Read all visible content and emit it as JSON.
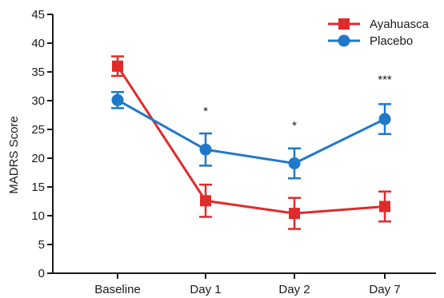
{
  "chart_data": {
    "type": "line",
    "title": "",
    "xlabel": "",
    "ylabel": "MADRS Score",
    "ylim": [
      0,
      45
    ],
    "yticks": [
      0,
      5,
      10,
      15,
      20,
      25,
      30,
      35,
      40,
      45
    ],
    "categories": [
      "Baseline",
      "Day 1",
      "Day 2",
      "Day 7"
    ],
    "series": [
      {
        "name": "Ayahuasca",
        "color": "#e02b2b",
        "marker": "square",
        "values": [
          36.0,
          12.6,
          10.4,
          11.6
        ],
        "error": [
          1.7,
          2.8,
          2.7,
          2.6
        ]
      },
      {
        "name": "Placebo",
        "color": "#1f78c8",
        "marker": "circle",
        "values": [
          30.1,
          21.5,
          19.1,
          26.8
        ],
        "error": [
          1.4,
          2.8,
          2.6,
          2.6
        ]
      }
    ],
    "annotations": [
      {
        "category": "Day 1",
        "text": "*",
        "y": 27.5
      },
      {
        "category": "Day 2",
        "text": "*",
        "y": 25.0
      },
      {
        "category": "Day 7",
        "text": "***",
        "y": 33.0
      }
    ],
    "grid": false,
    "legend_position": "top-right"
  }
}
